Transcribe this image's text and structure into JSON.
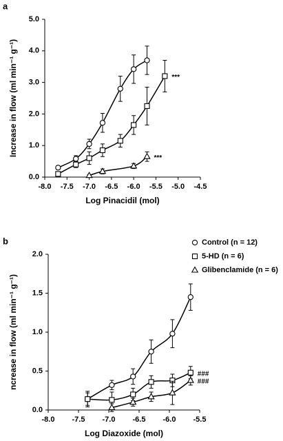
{
  "chart_data": [
    {
      "type": "scatter",
      "label": "a",
      "xlabel": "Log Pinacidil (mol)",
      "ylabel": "Increase in flow (ml min⁻¹ g⁻¹)",
      "xlim": [
        -8,
        -4.5
      ],
      "xticks": [
        {
          "value": -8,
          "label": "-8.0"
        },
        {
          "value": -7.5,
          "label": "-7.5"
        },
        {
          "value": -7,
          "label": "-7.0"
        },
        {
          "value": -6.5,
          "label": "-6.5"
        },
        {
          "value": -6,
          "label": "-6.0"
        },
        {
          "value": -5.5,
          "label": "-5.5"
        },
        {
          "value": -5,
          "label": "-5.0"
        },
        {
          "value": -4.5,
          "label": "-4.5"
        }
      ],
      "ylim": [
        0,
        5
      ],
      "yticks": [
        {
          "value": 0,
          "label": "0.0"
        },
        {
          "value": 1,
          "label": "1.0"
        },
        {
          "value": 2,
          "label": "2.0"
        },
        {
          "value": 3,
          "label": "3.0"
        },
        {
          "value": 4,
          "label": "4.0"
        },
        {
          "value": 5,
          "label": "5.0"
        }
      ],
      "series": [
        {
          "marker": "circle",
          "color": "#000000",
          "x": [
            -7.7,
            -7.3,
            -7.0,
            -6.7,
            -6.3,
            -6.0,
            -5.7
          ],
          "values": [
            0.3,
            0.58,
            1.05,
            1.72,
            2.8,
            3.42,
            3.7
          ],
          "errors": [
            0.05,
            0.1,
            0.15,
            0.3,
            0.4,
            0.45,
            0.45
          ]
        },
        {
          "marker": "square",
          "color": "#000000",
          "x": [
            -7.7,
            -7.3,
            -7.0,
            -6.7,
            -6.3,
            -6.0,
            -5.7,
            -5.3
          ],
          "values": [
            0.1,
            0.4,
            0.6,
            0.85,
            1.15,
            1.65,
            2.25,
            3.2
          ],
          "errors": [
            0.03,
            0.1,
            0.2,
            0.2,
            0.2,
            0.3,
            0.6,
            0.5
          ]
        },
        {
          "marker": "triangle",
          "color": "#000000",
          "x": [
            -7.0,
            -6.7,
            -6.0,
            -5.7
          ],
          "values": [
            0.05,
            0.18,
            0.35,
            0.65
          ],
          "errors": [
            0.03,
            0.08,
            0.08,
            0.15
          ]
        }
      ],
      "annotations": [
        "***",
        "***"
      ]
    },
    {
      "type": "scatter",
      "label": "b",
      "xlabel": "Log Diazoxide (mol)",
      "ylabel": "ncrease in flow (ml min⁻¹ g⁻¹)",
      "xlim": [
        -8,
        -5.5
      ],
      "xticks": [
        {
          "value": -8,
          "label": "-8.0"
        },
        {
          "value": -7.5,
          "label": "-7.5"
        },
        {
          "value": -7,
          "label": "-7.0"
        },
        {
          "value": -6.5,
          "label": "-6.5"
        },
        {
          "value": -6,
          "label": "-6.0"
        },
        {
          "value": -5.5,
          "label": "-5.5"
        }
      ],
      "ylim": [
        0,
        2
      ],
      "yticks": [
        {
          "value": 0,
          "label": "0.0"
        },
        {
          "value": 0.5,
          "label": "0.5"
        },
        {
          "value": 1,
          "label": "1.0"
        },
        {
          "value": 1.5,
          "label": "1.5"
        },
        {
          "value": 2,
          "label": "2.0"
        }
      ],
      "legend": "top-right",
      "series": [
        {
          "name": "Control (n = 12)",
          "marker": "circle",
          "color": "#000000",
          "x": [
            -7.35,
            -6.95,
            -6.6,
            -6.3,
            -5.95,
            -5.65
          ],
          "values": [
            0.14,
            0.32,
            0.43,
            0.75,
            0.98,
            1.45
          ],
          "errors": [
            0.08,
            0.06,
            0.1,
            0.15,
            0.18,
            0.17
          ]
        },
        {
          "name": "5-HD (n = 6)",
          "marker": "square",
          "color": "#000000",
          "x": [
            -7.35,
            -6.95,
            -6.6,
            -6.3,
            -5.95,
            -5.65
          ],
          "values": [
            0.14,
            0.13,
            0.2,
            0.36,
            0.38,
            0.48
          ],
          "errors": [
            0.1,
            0.1,
            0.08,
            0.08,
            0.08,
            0.08
          ]
        },
        {
          "name": "Glibenclamide (n = 6)",
          "marker": "triangle",
          "color": "#000000",
          "x": [
            -6.95,
            -6.6,
            -6.3,
            -5.95,
            -5.65
          ],
          "values": [
            0.03,
            0.1,
            0.17,
            0.22,
            0.38
          ],
          "errors": [
            0.05,
            0.05,
            0.06,
            0.15,
            0.06
          ]
        }
      ],
      "annotations": [
        "###",
        "###"
      ]
    }
  ]
}
